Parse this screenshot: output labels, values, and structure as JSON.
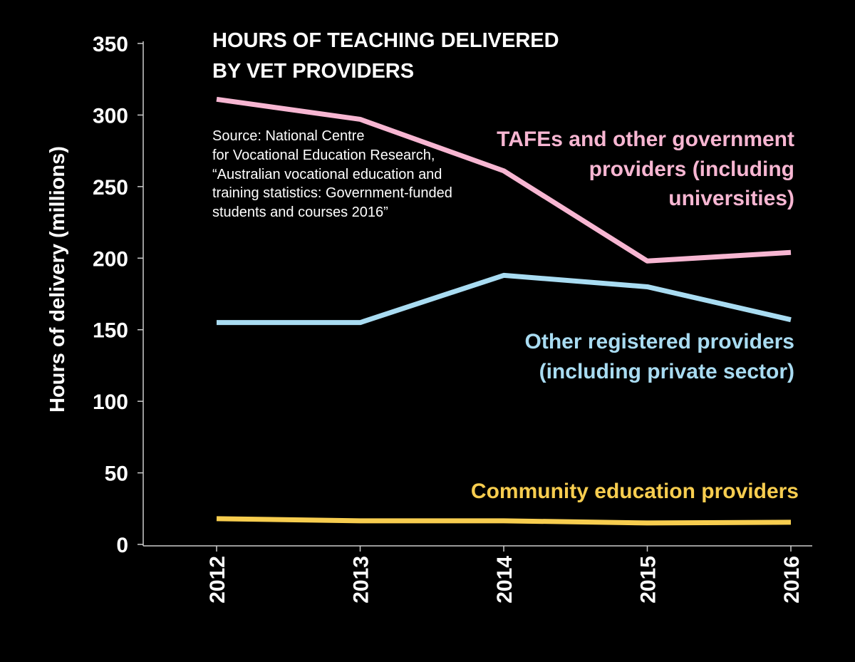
{
  "chart_data": {
    "type": "line",
    "title_lines": [
      "HOURS OF TEACHING DELIVERED",
      "BY VET PROVIDERS"
    ],
    "source_lines": [
      "Source: National Centre",
      "for Vocational Education Research,",
      "“Australian vocational education and",
      "training statistics: Government-funded",
      "students and courses 2016”"
    ],
    "ylabel": "Hours of delivery (millions)",
    "xlabel": "",
    "ylim": [
      0,
      350
    ],
    "yticks": [
      "0",
      "50",
      "100",
      "150",
      "200",
      "250",
      "300",
      "350"
    ],
    "categories": [
      "2012",
      "2013",
      "2014",
      "2015",
      "2016"
    ],
    "grid": false,
    "series": [
      {
        "name": "TAFEs and other government providers (including universities)",
        "label_lines": [
          "TAFEs and other government",
          "providers (including",
          "universities)"
        ],
        "color": "#f7b6d2",
        "values": [
          311,
          297,
          261,
          198,
          204
        ]
      },
      {
        "name": "Other registered providers (including private sector)",
        "label_lines": [
          "Other registered providers",
          "(including private sector)"
        ],
        "color": "#a9dcf2",
        "values": [
          155,
          155,
          188,
          180,
          157
        ]
      },
      {
        "name": "Community education providers",
        "label_lines": [
          "Community education providers"
        ],
        "color": "#f7cd4f",
        "values": [
          18,
          16.5,
          16.5,
          15,
          15.5
        ]
      }
    ]
  }
}
